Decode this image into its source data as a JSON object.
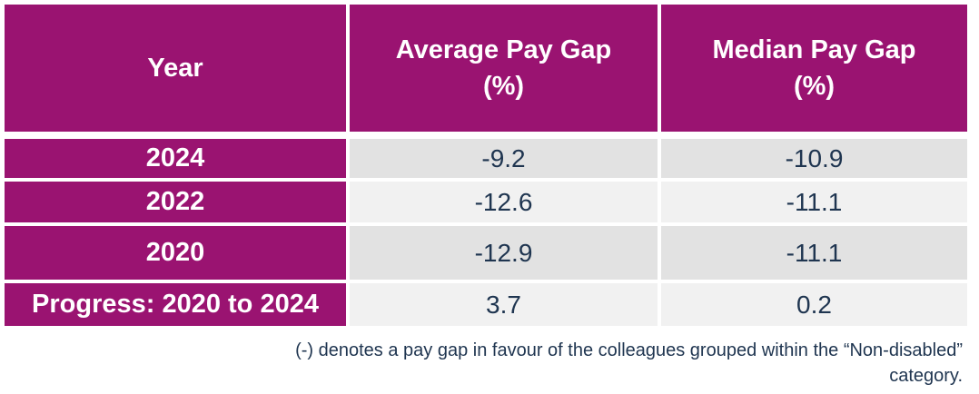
{
  "table": {
    "headers": {
      "year": "Year",
      "average_line1": "Average Pay Gap",
      "average_line2": "(%)",
      "median_line1": "Median Pay Gap",
      "median_line2": "(%)"
    },
    "rows": [
      {
        "label": "2024",
        "average": "-9.2",
        "median": "-10.9"
      },
      {
        "label": "2022",
        "average": "-12.6",
        "median": "-11.1"
      },
      {
        "label": "2020",
        "average": "-12.9",
        "median": "-11.1"
      },
      {
        "label": "Progress: 2020 to 2024",
        "average": "3.7",
        "median": "0.2"
      }
    ]
  },
  "footnote": "(-) denotes a pay gap in favour of the colleagues grouped within the “Non-disabled” category.",
  "colors": {
    "header_bg": "#9a1371",
    "header_text": "#ffffff",
    "value_text": "#1f3550",
    "row_shade": "#e2e2e2",
    "row_light": "#f1f1f1"
  }
}
